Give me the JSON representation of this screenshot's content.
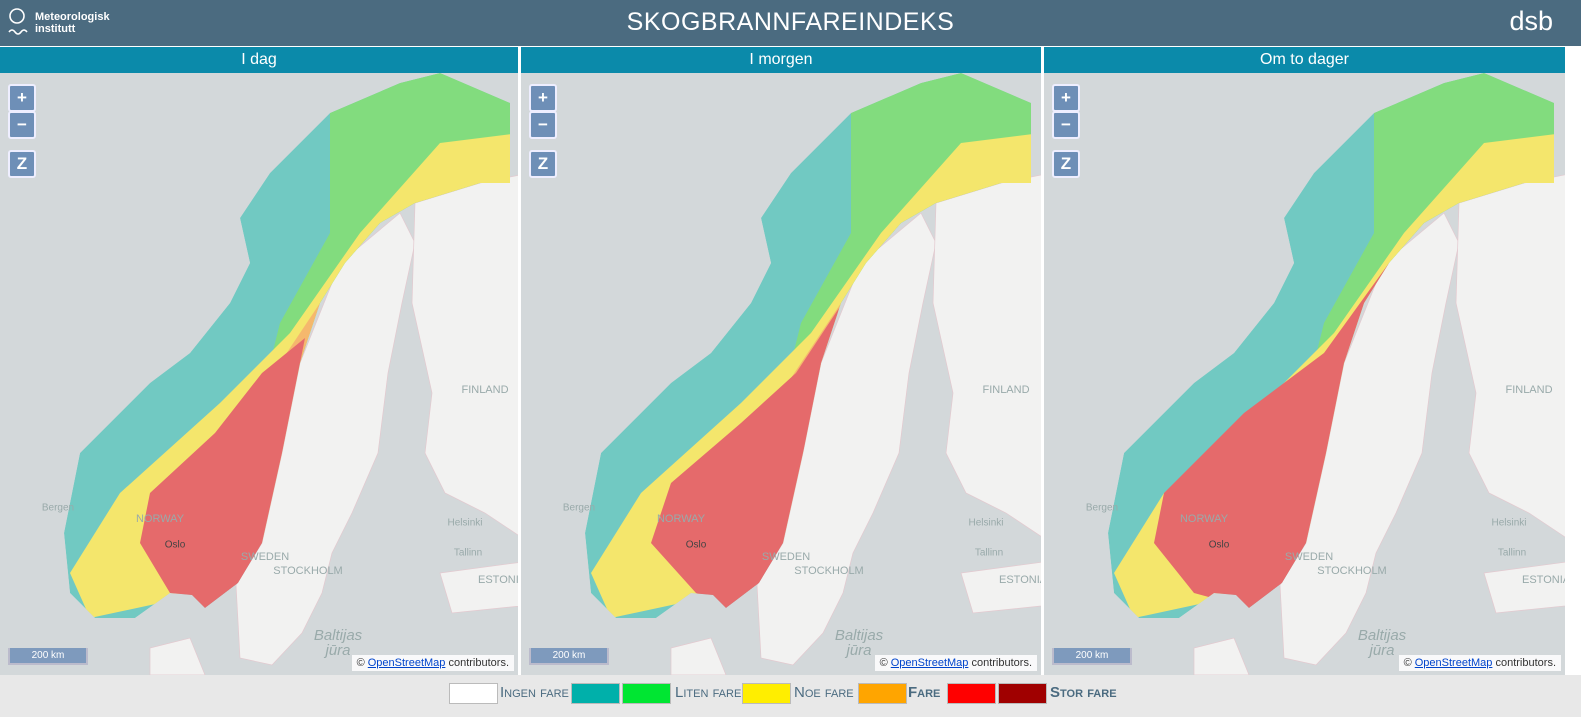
{
  "header": {
    "logo_line_1": "Meteorologisk",
    "logo_line_2": "institutt",
    "title": "SKOGBRANNFAREINDEKS",
    "partner": "dsb"
  },
  "panels": [
    {
      "title": "I dag"
    },
    {
      "title": "I morgen"
    },
    {
      "title": "Om to dager"
    }
  ],
  "map_common": {
    "zoom_in": "+",
    "zoom_out": "−",
    "zoom_reset": "Z",
    "scale": "200 km",
    "attribution_prefix": "©",
    "attribution_link": "OpenStreetMap",
    "attribution_suffix": "contributors.",
    "places": [
      "FINLAND",
      "SWEDEN",
      "STOCKHOLM",
      "Helsinki",
      "Tallinn",
      "ESTONIA",
      "Bergen",
      "Oslo",
      "NORWAY",
      "Baltijas",
      "jūra"
    ]
  },
  "legend": [
    {
      "label": "Ingen fare",
      "colors": [
        "#ffffff"
      ]
    },
    {
      "label": "Liten fare",
      "colors": [
        "#00b0aa",
        "#00e632"
      ]
    },
    {
      "label": "Noe fare",
      "colors": [
        "#ffee00"
      ]
    },
    {
      "label": "Fare",
      "colors": [
        "#ffa500"
      ]
    },
    {
      "label": "Stor fare",
      "colors": [
        "#ff0000",
        "#a00000"
      ]
    }
  ]
}
